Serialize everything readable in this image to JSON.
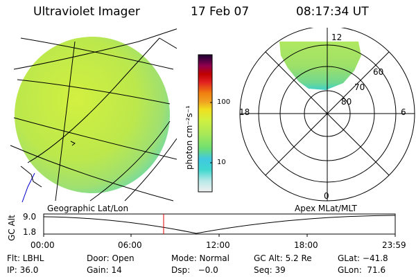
{
  "header": {
    "instrument": "Ultraviolet Imager",
    "date": "17 Feb 07",
    "time": "08:17:34 UT"
  },
  "colorbar": {
    "label": "photon cm⁻²s⁻¹",
    "ticks": [
      "100",
      "10"
    ],
    "scale": "log",
    "colors": [
      "#f0f0f0",
      "#b8e8e8",
      "#40d8d0",
      "#40c8e0",
      "#70e070",
      "#a8e858",
      "#d0f040",
      "#f0e020",
      "#f0a020",
      "#f08010",
      "#e02020",
      "#c00000",
      "#900050",
      "#500040",
      "#200030"
    ]
  },
  "polar_plot": {
    "mlt_labels": [
      "12",
      "18",
      "6",
      "0"
    ],
    "lat_labels": [
      "60",
      "70",
      "80"
    ]
  },
  "labels": {
    "left_panel": "Geographic Lat/Lon",
    "right_panel": "Apex MLat/MLT"
  },
  "alt_plot": {
    "ylabel": "GC Alt",
    "yticks": [
      "9.0",
      "1.8"
    ],
    "xticks": [
      "00:00",
      "06:00",
      "12:00",
      "18:00",
      "23:59"
    ],
    "marker_time": "08:17:34"
  },
  "info": {
    "row1": {
      "flt": "Flt: LBHL",
      "door": "Door: Open",
      "mode": "Mode: Normal",
      "gcalt": "GC Alt: 5.2 Re",
      "glat": "GLat: −41.8"
    },
    "row2": {
      "ip": "IP: 36.0",
      "gain": "Gain: 14",
      "dsp": "Dsp:   −0.0",
      "seq": "Seq: 39",
      "glon": "GLon:  71.6"
    }
  },
  "accent_colors": {
    "marker": "#e00000",
    "coast": "#0000cc"
  }
}
